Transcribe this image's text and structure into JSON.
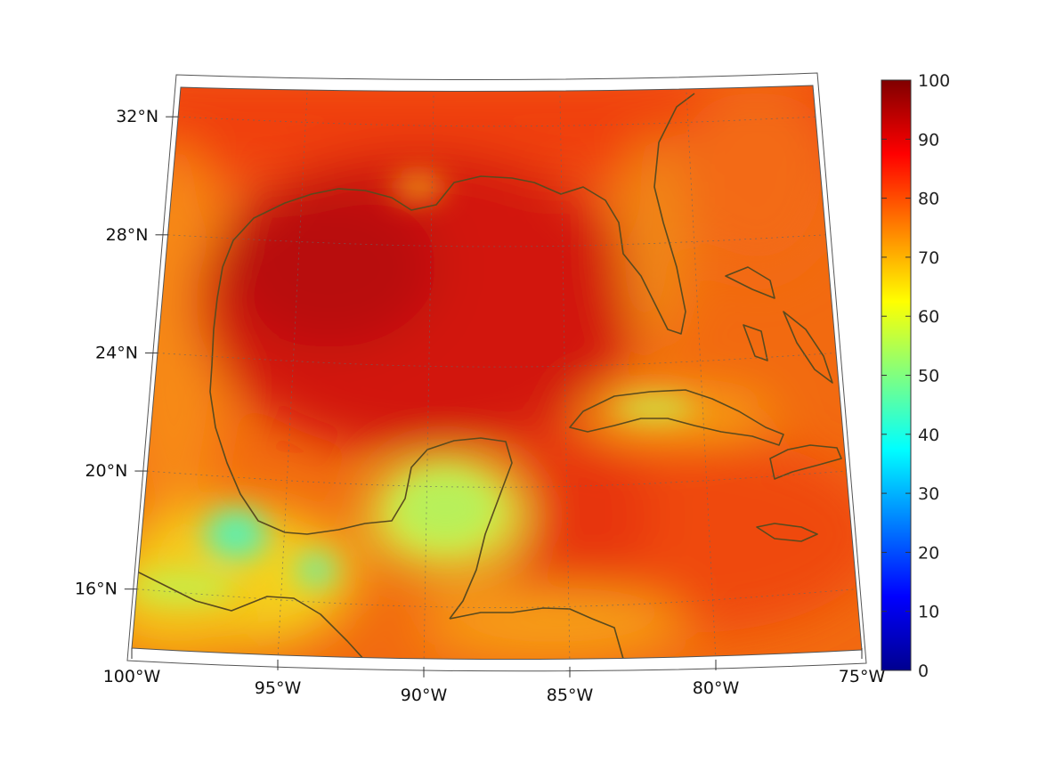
{
  "map": {
    "projection": "conic",
    "extent": {
      "lon": [
        -100,
        -75
      ],
      "lat": [
        14,
        33
      ]
    },
    "lat_ticks": [
      {
        "value": 16,
        "label": "16°N"
      },
      {
        "value": 20,
        "label": "20°N"
      },
      {
        "value": 24,
        "label": "24°N"
      },
      {
        "value": 28,
        "label": "28°N"
      },
      {
        "value": 32,
        "label": "32°N"
      }
    ],
    "lon_ticks": [
      {
        "value": -100,
        "label": "100°W"
      },
      {
        "value": -95,
        "label": "95°W"
      },
      {
        "value": -90,
        "label": "90°W"
      },
      {
        "value": -85,
        "label": "85°W"
      },
      {
        "value": -80,
        "label": "80°W"
      },
      {
        "value": -75,
        "label": "75°W"
      }
    ],
    "grid": true,
    "coastline_color": "#5a4a1e",
    "colormap": "jet"
  },
  "colorbar": {
    "range": [
      0,
      100
    ],
    "ticks": [
      "0",
      "10",
      "20",
      "30",
      "40",
      "50",
      "60",
      "70",
      "80",
      "90",
      "100"
    ],
    "colors": [
      "#00008f",
      "#0000ff",
      "#0080ff",
      "#00ffff",
      "#80ff80",
      "#ffff00",
      "#ff8000",
      "#ff0000",
      "#800000"
    ]
  }
}
